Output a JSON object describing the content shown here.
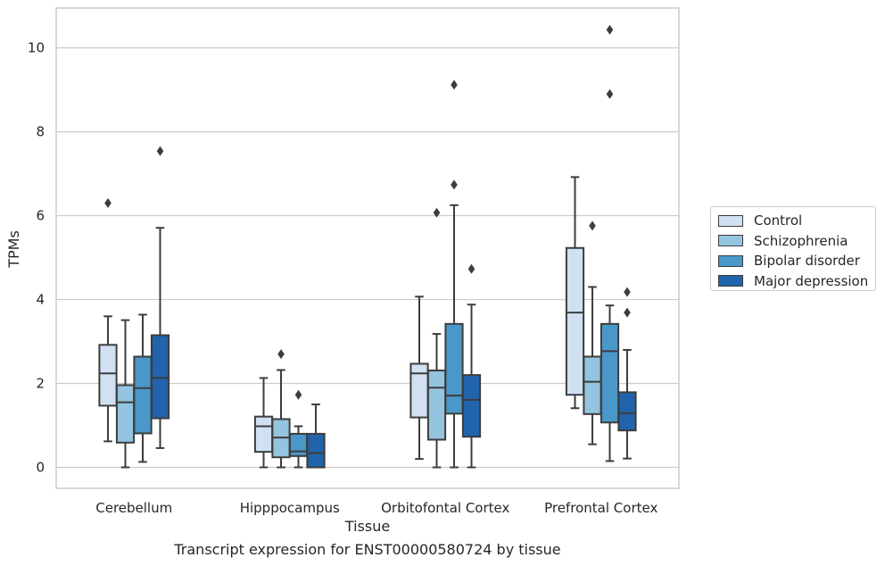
{
  "caption": "Transcript expression for ENST00000580724 by tissue",
  "chart_data": {
    "type": "box",
    "xlabel": "Tissue",
    "ylabel": "TPMs",
    "ylim": [
      -0.5,
      10.95
    ],
    "yticks": [
      0,
      2,
      4,
      6,
      8,
      10
    ],
    "grid": "horizontal",
    "legend_position": "right",
    "categories": [
      "Cerebellum",
      "Hipppocampus",
      "Orbitofontal Cortex",
      "Prefrontal Cortex"
    ],
    "series": [
      {
        "name": "Control",
        "color": "#d0e1f2",
        "boxes": [
          {
            "whislo": 0.62,
            "q1": 1.47,
            "med": 2.24,
            "q3": 2.92,
            "whishi": 3.6,
            "fliers": [
              6.3
            ]
          },
          {
            "whislo": 0.0,
            "q1": 0.37,
            "med": 0.98,
            "q3": 1.21,
            "whishi": 2.13,
            "fliers": []
          },
          {
            "whislo": 0.2,
            "q1": 1.19,
            "med": 2.24,
            "q3": 2.47,
            "whishi": 4.07,
            "fliers": []
          },
          {
            "whislo": 1.41,
            "q1": 1.73,
            "med": 3.69,
            "q3": 5.23,
            "whishi": 6.92,
            "fliers": []
          }
        ]
      },
      {
        "name": "Schizophrenia",
        "color": "#94c4df",
        "boxes": [
          {
            "whislo": 0.0,
            "q1": 0.59,
            "med": 1.55,
            "q3": 1.96,
            "whishi": 3.51,
            "fliers": []
          },
          {
            "whislo": 0.0,
            "q1": 0.24,
            "med": 0.71,
            "q3": 1.15,
            "whishi": 2.32,
            "fliers": [
              2.7
            ]
          },
          {
            "whislo": 0.0,
            "q1": 0.66,
            "med": 1.9,
            "q3": 2.31,
            "whishi": 3.18,
            "fliers": [
              6.07
            ]
          },
          {
            "whislo": 0.55,
            "q1": 1.27,
            "med": 2.04,
            "q3": 2.64,
            "whishi": 4.3,
            "fliers": [
              5.76
            ]
          }
        ]
      },
      {
        "name": "Bipolar disorder",
        "color": "#4a98c9",
        "boxes": [
          {
            "whislo": 0.13,
            "q1": 0.81,
            "med": 1.89,
            "q3": 2.64,
            "whishi": 3.64,
            "fliers": []
          },
          {
            "whislo": 0.0,
            "q1": 0.27,
            "med": 0.38,
            "q3": 0.8,
            "whishi": 0.98,
            "fliers": [
              1.73
            ]
          },
          {
            "whislo": 0.0,
            "q1": 1.28,
            "med": 1.71,
            "q3": 3.42,
            "whishi": 6.25,
            "fliers": [
              6.74,
              9.12
            ]
          },
          {
            "whislo": 0.15,
            "q1": 1.07,
            "med": 2.77,
            "q3": 3.42,
            "whishi": 3.86,
            "fliers": [
              8.9,
              10.43
            ]
          }
        ]
      },
      {
        "name": "Major depression",
        "color": "#2164ab",
        "boxes": [
          {
            "whislo": 0.46,
            "q1": 1.17,
            "med": 2.13,
            "q3": 3.15,
            "whishi": 5.71,
            "fliers": [
              7.54
            ]
          },
          {
            "whislo": 0.0,
            "q1": 0.0,
            "med": 0.34,
            "q3": 0.8,
            "whishi": 1.5,
            "fliers": []
          },
          {
            "whislo": 0.0,
            "q1": 0.73,
            "med": 1.61,
            "q3": 2.2,
            "whishi": 3.88,
            "fliers": [
              4.73
            ]
          },
          {
            "whislo": 0.21,
            "q1": 0.88,
            "med": 1.29,
            "q3": 1.79,
            "whishi": 2.8,
            "fliers": [
              3.69,
              4.18
            ]
          }
        ]
      }
    ]
  }
}
